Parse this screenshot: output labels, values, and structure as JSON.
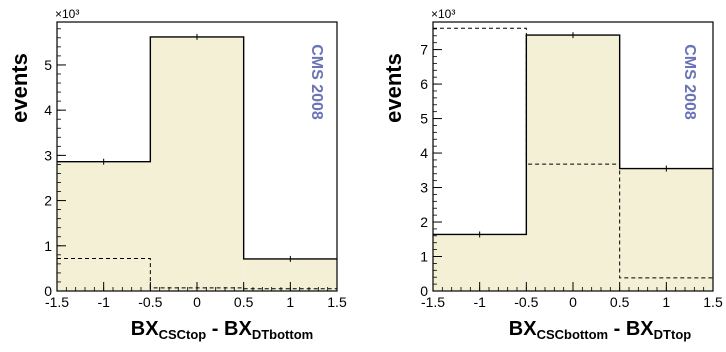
{
  "colors": {
    "fill": "#f3f0d6",
    "line": "#000000",
    "annotation": "#6a73b8"
  },
  "chart_data": [
    {
      "type": "histogram",
      "ylabel": "events",
      "multiplier": "×10³",
      "xlabel": {
        "main1": "BX",
        "sub1": "CSCtop",
        "sep": " - ",
        "main2": "BX",
        "sub2": "DTbottom"
      },
      "annotation": "CMS 2008",
      "xlim": [
        -1.5,
        1.5
      ],
      "ylim": [
        0,
        5.95
      ],
      "bin_edges": [
        -1.5,
        -0.5,
        0.5,
        1.5
      ],
      "xticks": [
        "-1.5",
        "-1",
        "-0.5",
        "0",
        "0.5",
        "1",
        "1.5"
      ],
      "xtick_values": [
        -1.5,
        -1,
        -0.5,
        0,
        0.5,
        1,
        1.5
      ],
      "yticks": [
        "0",
        "1",
        "2",
        "3",
        "4",
        "5"
      ],
      "ytick_values": [
        0,
        1,
        2,
        3,
        4,
        5
      ],
      "series": [
        {
          "style": "filled-solid",
          "values": [
            2.86,
            5.62,
            0.71
          ]
        },
        {
          "style": "dashed",
          "values": [
            0.72,
            0.07,
            0.05
          ]
        }
      ]
    },
    {
      "type": "histogram",
      "ylabel": "events",
      "multiplier": "×10³",
      "xlabel": {
        "main1": "BX",
        "sub1": "CSCbottom",
        "sep": " - ",
        "main2": "BX",
        "sub2": "DTtop"
      },
      "annotation": "CMS 2008",
      "xlim": [
        -1.5,
        1.5
      ],
      "ylim": [
        0,
        7.8
      ],
      "bin_edges": [
        -1.5,
        -0.5,
        0.5,
        1.5
      ],
      "xticks": [
        "-1.5",
        "-1",
        "-0.5",
        "0",
        "0.5",
        "1",
        "1.5"
      ],
      "xtick_values": [
        -1.5,
        -1,
        -0.5,
        0,
        0.5,
        1,
        1.5
      ],
      "yticks": [
        "0",
        "1",
        "2",
        "3",
        "4",
        "5",
        "6",
        "7"
      ],
      "ytick_values": [
        0,
        1,
        2,
        3,
        4,
        5,
        6,
        7
      ],
      "series": [
        {
          "style": "filled-solid",
          "values": [
            1.64,
            7.42,
            3.55
          ]
        },
        {
          "style": "dashed",
          "values": [
            7.62,
            3.68,
            0.38
          ]
        }
      ]
    }
  ]
}
